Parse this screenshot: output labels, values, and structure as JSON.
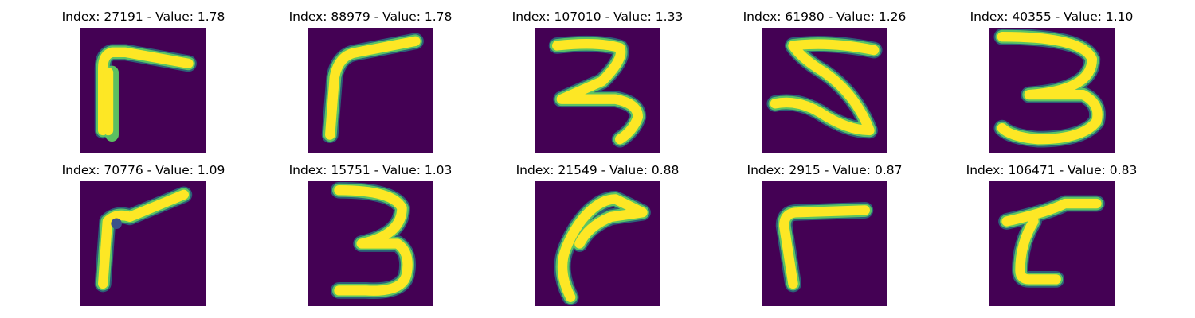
{
  "colors": {
    "background": "#440154",
    "teal": "#21918c",
    "green": "#5ec962",
    "yellow": "#fde725"
  },
  "panels": [
    {
      "index": "27191",
      "value": "1.78",
      "title": "Index: 27191 - Value: 1.78",
      "digit": "7"
    },
    {
      "index": "88979",
      "value": "1.78",
      "title": "Index: 88979 - Value: 1.78",
      "digit": "7"
    },
    {
      "index": "107010",
      "value": "1.33",
      "title": "Index: 107010 - Value: 1.33",
      "digit": "3"
    },
    {
      "index": "61980",
      "value": "1.26",
      "title": "Index: 61980 - Value: 1.26",
      "digit": "5"
    },
    {
      "index": "40355",
      "value": "1.10",
      "title": "Index: 40355 - Value: 1.10",
      "digit": "3"
    },
    {
      "index": "70776",
      "value": "1.09",
      "title": "Index: 70776 - Value: 1.09",
      "digit": "7"
    },
    {
      "index": "15751",
      "value": "1.03",
      "title": "Index: 15751 - Value: 1.03",
      "digit": "3"
    },
    {
      "index": "21549",
      "value": "0.88",
      "title": "Index: 21549 - Value: 0.88",
      "digit": "7"
    },
    {
      "index": "2915",
      "value": "0.87",
      "title": "Index: 2915 - Value: 0.87",
      "digit": "7"
    },
    {
      "index": "106471",
      "value": "0.83",
      "title": "Index: 106471 - Value: 0.83",
      "digit": "7"
    }
  ]
}
